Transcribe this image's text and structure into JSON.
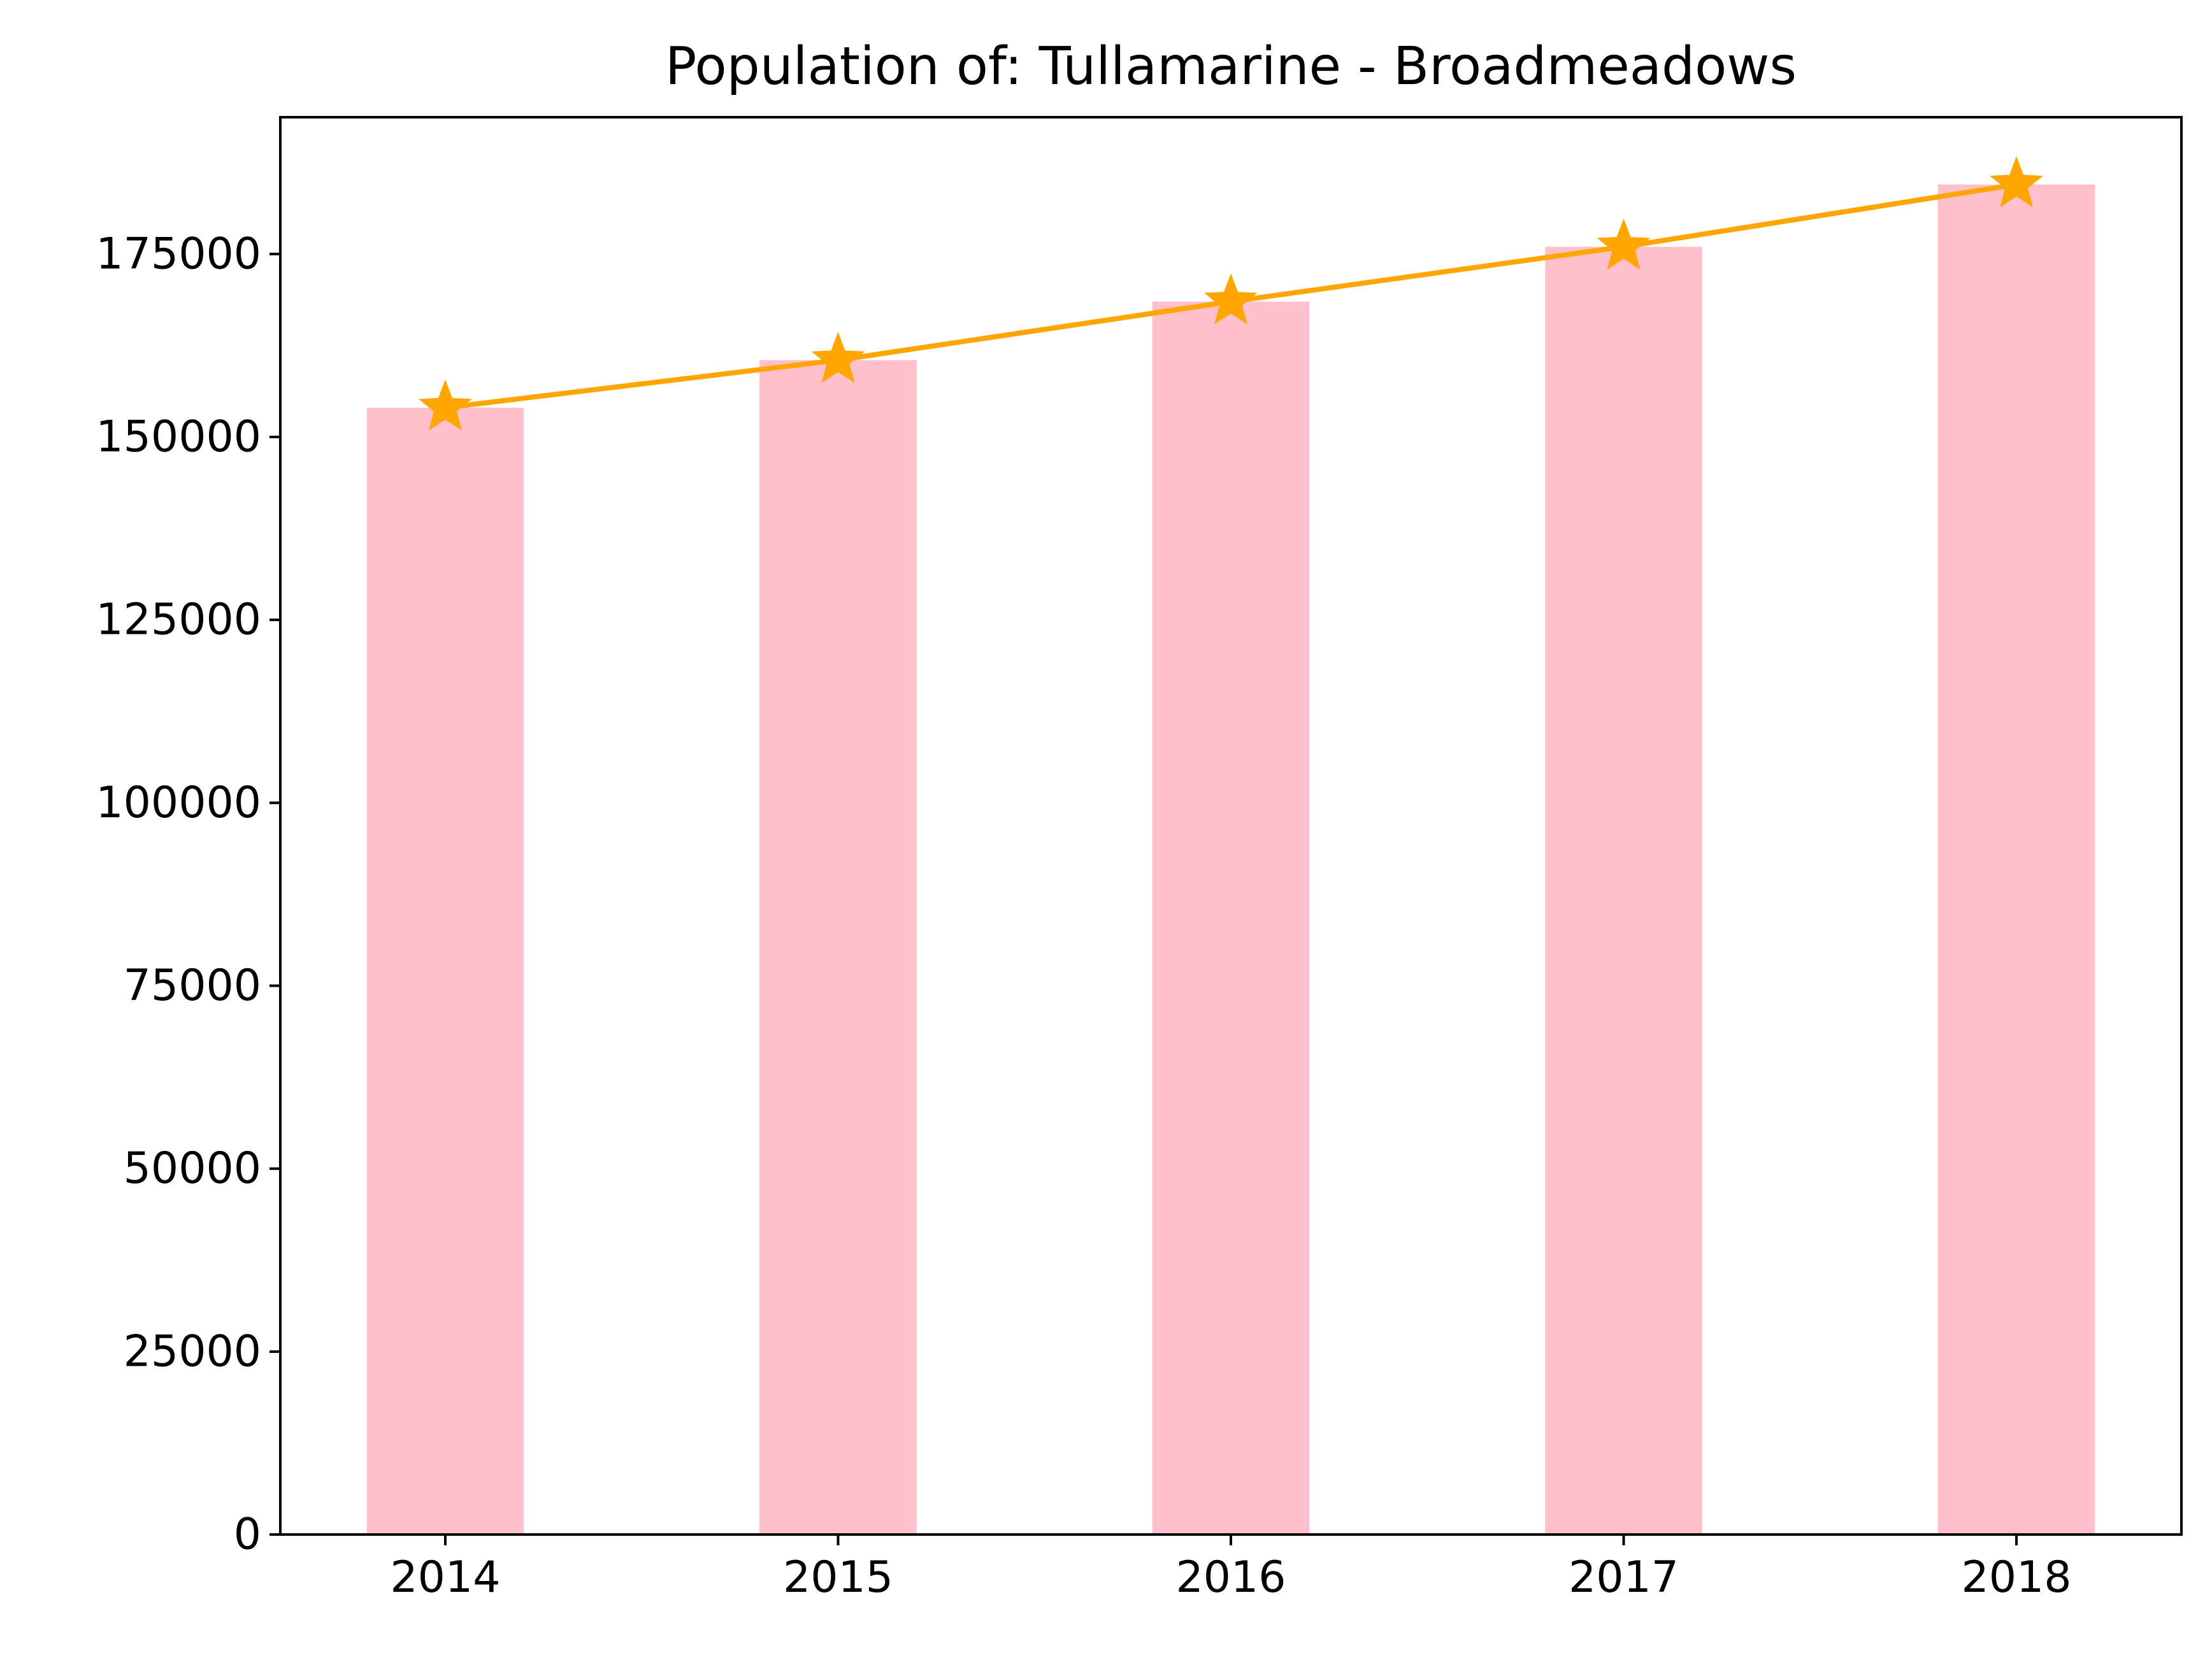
{
  "chart_data": {
    "type": "bar",
    "title": "Population of: Tullamarine - Broadmeadows",
    "xlabel": "",
    "ylabel": "",
    "categories": [
      "2014",
      "2015",
      "2016",
      "2017",
      "2018"
    ],
    "series": [
      {
        "kind": "bar",
        "values": [
          154000,
          160500,
          168500,
          176000,
          184500
        ],
        "color": "#ffc0cb"
      },
      {
        "kind": "line",
        "marker": "star",
        "values": [
          154000,
          160500,
          168500,
          176000,
          184500
        ],
        "color": "#ffa500"
      }
    ],
    "ylim": [
      0,
      193700
    ],
    "yticks": [
      0,
      25000,
      50000,
      75000,
      100000,
      125000,
      150000,
      175000
    ],
    "ytick_labels": [
      "0",
      "25000",
      "50000",
      "75000",
      "100000",
      "125000",
      "150000",
      "175000"
    ],
    "grid": false,
    "legend": "none"
  }
}
